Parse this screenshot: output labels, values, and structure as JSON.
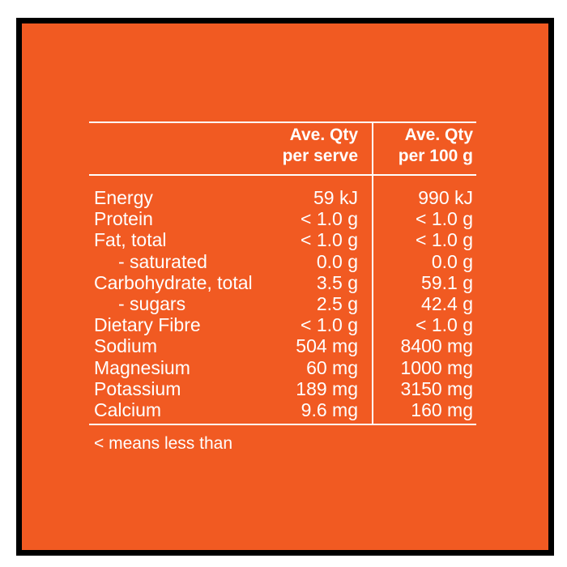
{
  "nutrition_table": {
    "headers": {
      "per_serve_line1": "Ave. Qty",
      "per_serve_line2": "per serve",
      "per_100g_line1": "Ave. Qty",
      "per_100g_line2": "per 100 g"
    },
    "rows": [
      {
        "name": "Energy",
        "per_serve": "59 kJ",
        "per_100g": "990 kJ",
        "indent": false
      },
      {
        "name": "Protein",
        "per_serve": "< 1.0 g",
        "per_100g": "< 1.0 g",
        "indent": false
      },
      {
        "name": "Fat, total",
        "per_serve": "< 1.0 g",
        "per_100g": "< 1.0 g",
        "indent": false
      },
      {
        "name": "- saturated",
        "per_serve": "0.0 g",
        "per_100g": "0.0 g",
        "indent": true
      },
      {
        "name": "Carbohydrate, total",
        "per_serve": "3.5 g",
        "per_100g": "59.1 g",
        "indent": false
      },
      {
        "name": "- sugars",
        "per_serve": "2.5 g",
        "per_100g": "42.4 g",
        "indent": true
      },
      {
        "name": "Dietary Fibre",
        "per_serve": "< 1.0 g",
        "per_100g": "< 1.0 g",
        "indent": false
      },
      {
        "name": "Sodium",
        "per_serve": "504 mg",
        "per_100g": "8400 mg",
        "indent": false
      },
      {
        "name": "Magnesium",
        "per_serve": "60 mg",
        "per_100g": "1000 mg",
        "indent": false
      },
      {
        "name": "Potassium",
        "per_serve": "189 mg",
        "per_100g": "3150 mg",
        "indent": false
      },
      {
        "name": "Calcium",
        "per_serve": "9.6 mg",
        "per_100g": "160 mg",
        "indent": false
      }
    ],
    "footnote": "< means less than"
  },
  "colors": {
    "background": "#f15a22",
    "text": "#ffffff",
    "border": "#000000"
  }
}
